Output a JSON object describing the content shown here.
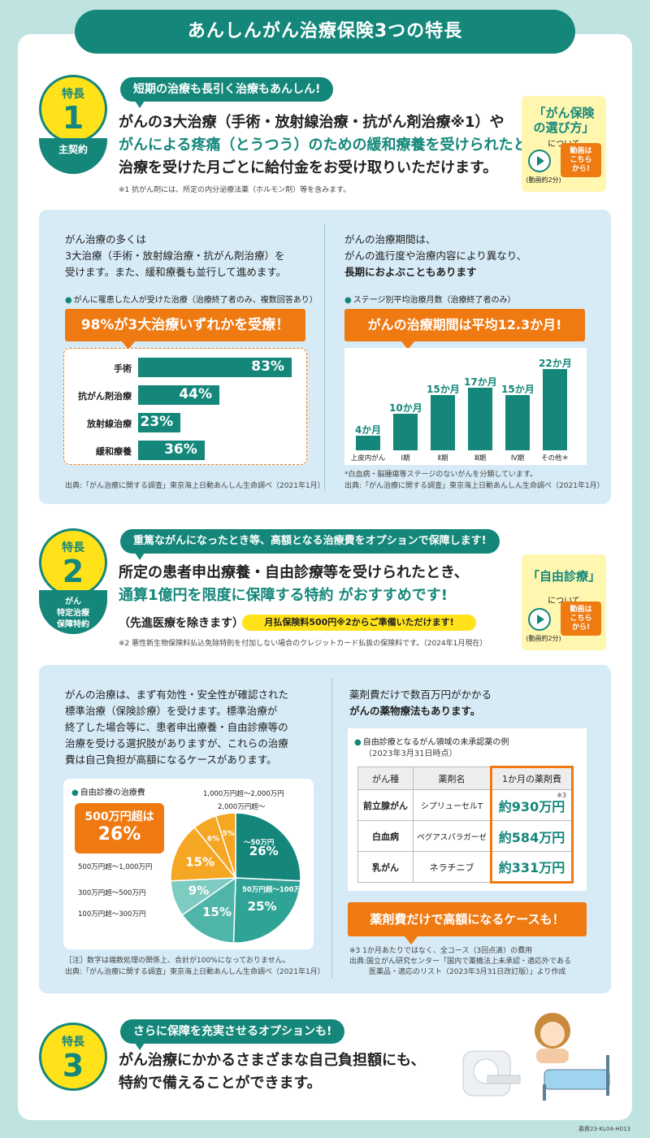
{
  "header": {
    "title": "あんしんがん治療保険3つの特長"
  },
  "feature1": {
    "label": "特長",
    "num": "1",
    "sub": "主契約",
    "pill": "短期の治療も長引く治療もあんしん!",
    "line1": "がんの3大治療（手術・放射線治療・抗がん剤治療※1）や",
    "line2": "がんによる疼痛（とうつう）のための緩和療養を受けられたとき、",
    "line3": "治療を受けた月ごとに給付金をお受け取りいただけます。",
    "note": "※1 抗がん剤には、所定の内分泌療法薬（ホルモン剤）等を含みます。",
    "video": {
      "title1": "「がん保険",
      "title2": "の選び方」",
      "sub": "について",
      "btn1": "動画は",
      "btn2": "こちら",
      "btn3": "から!",
      "duration": "(動画約2分)"
    }
  },
  "panel1": {
    "left_text1": "がん治療の多くは",
    "left_text2": "3大治療（手術・放射線治療・抗がん剤治療）を",
    "left_text3": "受けます。また、緩和療養も並行して進めます。",
    "left_dot": "がんに罹患した人が受けた治療（治療終了者のみ、複数回答あり）",
    "left_banner": "98%が3大治療いずれかを受療！",
    "left_source": "出典:「がん治療に関する調査」東京海上日動あんしん生命調べ（2021年1月）",
    "right_text1": "がんの治療期間は、",
    "right_text2": "がんの進行度や治療内容により異なり、",
    "right_text3": "長期におよぶこともあります",
    "right_dot": "ステージ別平均治療月数（治療終了者のみ）",
    "right_banner": "がんの治療期間は平均12.3か月!",
    "right_note1": "*白血病・脳腫瘍等ステージのないがんを分類しています。",
    "right_note2": "出典:「がん治療に関する調査」東京海上日動あんしん生命調べ（2021年1月）"
  },
  "feature2": {
    "label": "特長",
    "num": "2",
    "sub1": "がん",
    "sub2": "特定治療",
    "sub3": "保障特約",
    "pill": "重篤ながんになったとき等、高額となる治療費をオプションで保障します!",
    "line1": "所定の患者申出療養・自由診療等を受けられたとき、",
    "line2": "通算1億円を限度に保障する特約 がおすすめです!",
    "line3": "（先進医療を除きます）",
    "strip": "月払保険料500円※2からご準備いただけます!",
    "note": "※2 悪性新生物保険料払込免除特則を付加しない場合のクレジットカード払扱の保険料です。（2024年1月現在）",
    "video": {
      "title1": "「自由診療",
      "title2": "」",
      "sub": "について",
      "btn1": "動画は",
      "btn2": "こちら",
      "btn3": "から!",
      "duration": "(動画約2分)"
    }
  },
  "panel2": {
    "left_text1": "がんの治療は、まず有効性・安全性が確認された",
    "left_text2": "標準治療（保険診療）を受けます。標準治療が",
    "left_text3": "終了した場合等に、患者申出療養・自由診療等の",
    "left_text4": "治療を受ける選択肢がありますが、これらの治療",
    "left_text5": "費は自己負担が高額になるケースがあります。",
    "left_dot": "自由診療の治療費",
    "left_callout1": "500万円超は",
    "left_callout2": "26%",
    "left_note1": "［注］数字は端数処理の関係上、合計が100%になっておりません。",
    "left_note2": "出典:「がん治療に関する調査」東京海上日動あんしん生命調べ（2021年1月）",
    "right_text1": "薬剤費だけで数百万円がかかる",
    "right_text2": "がんの薬物療法もあります。",
    "right_dot1": "自由診療となるがん領域の未承認薬の例",
    "right_dot2": "（2023年3月31日時点）",
    "table_headers": [
      "がん種",
      "薬剤名",
      "1か月の薬剤費"
    ],
    "table_rows": [
      [
        "前立腺がん",
        "シプリューセルT",
        "約930万円"
      ],
      [
        "白血病",
        "ペグアスパラガーゼ",
        "約584万円"
      ],
      [
        "乳がん",
        "ネラチニブ",
        "約331万円"
      ]
    ],
    "table_mark": "※3",
    "right_banner": "薬剤費だけで高額になるケースも！",
    "right_note1": "※3 1か月あたりではなく、全コース（3回点滴）の費用",
    "right_note2": "出典:国立がん研究センター「国内で薬機法上未承認・適応外である",
    "right_note3": "医薬品・適応のリスト（2023年3月31日改訂版）」より作成"
  },
  "feature3": {
    "label": "特長",
    "num": "3",
    "pill": "さらに保障を充実させるオプションも!",
    "line1": "がん治療にかかるさまざまな自己負担額にも、",
    "line2": "特約で備えることができます。"
  },
  "footer": {
    "code": "募資23-KL04-H013"
  },
  "chart_data": [
    {
      "type": "bar",
      "orientation": "horizontal",
      "title": "がんに罹患した人が受けた治療（治療終了者のみ、複数回答あり）",
      "categories": [
        "手術",
        "抗がん剤治療",
        "放射線治療",
        "緩和療養"
      ],
      "values": [
        83,
        44,
        23,
        36
      ],
      "unit": "%"
    },
    {
      "type": "bar",
      "title": "ステージ別平均治療月数（治療終了者のみ）",
      "categories": [
        "上皮内がん",
        "Ⅰ期",
        "Ⅱ期",
        "Ⅲ期",
        "Ⅳ期",
        "その他＊"
      ],
      "values": [
        4,
        10,
        15,
        17,
        15,
        22
      ],
      "unit": "か月",
      "ylim": [
        0,
        22
      ]
    },
    {
      "type": "pie",
      "title": "自由診療の治療費",
      "categories": [
        "～50万円",
        "50万円超～100万円",
        "100万円超～300万円",
        "300万円超～500万円",
        "500万円超～1,000万円",
        "1,000万円超～2,000万円",
        "2,000万円超～"
      ],
      "values": [
        26,
        25,
        15,
        9,
        15,
        6,
        5
      ],
      "unit": "%",
      "colors": [
        "#14877a",
        "#2ea396",
        "#4fb5a9",
        "#7ecbc1",
        "#f5a623",
        "#f5a623",
        "#f5a623"
      ]
    }
  ],
  "colors": {
    "accent": "#14877a",
    "orange": "#ef7a12",
    "yellow": "#ffe21a",
    "panel": "#d6ebf6",
    "bg": "#bfe3e0"
  }
}
